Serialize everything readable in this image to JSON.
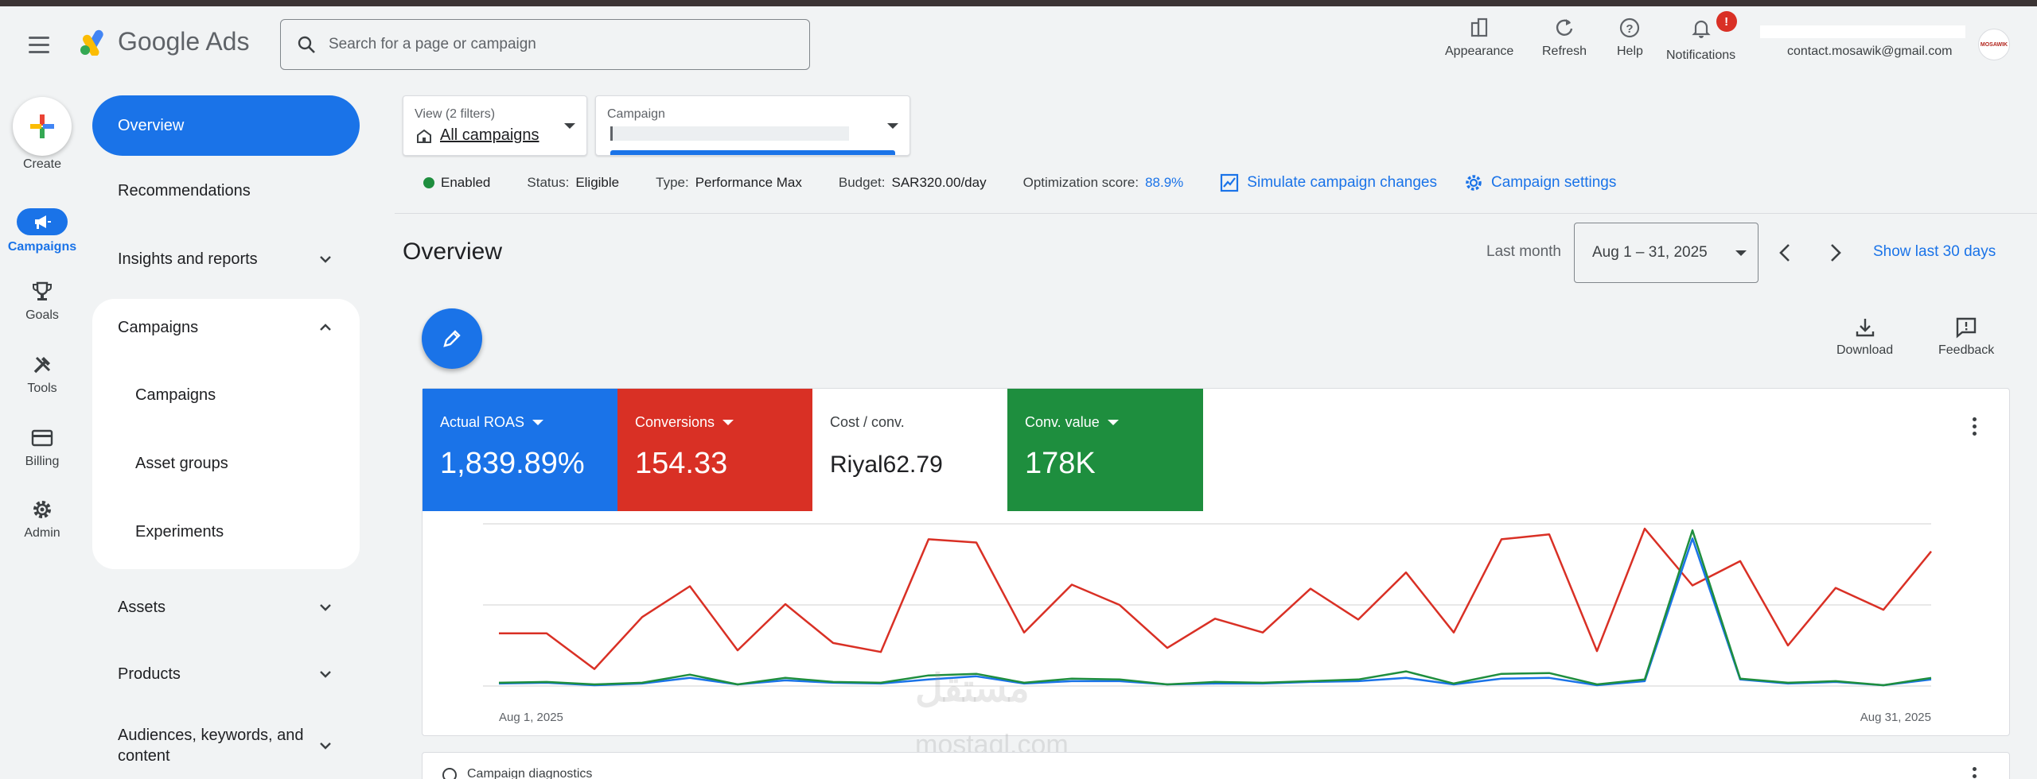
{
  "header": {
    "app_name": "Google Ads",
    "search_placeholder": "Search for a page or campaign",
    "buttons": {
      "appearance": "Appearance",
      "refresh": "Refresh",
      "help": "Help",
      "notifications": "Notifications"
    },
    "notification_badge": "!",
    "account_email": "contact.mosawik@gmail.com",
    "avatar_text": "MOSAWIK"
  },
  "rail": {
    "create": "Create",
    "campaigns": "Campaigns",
    "goals": "Goals",
    "tools": "Tools",
    "billing": "Billing",
    "admin": "Admin"
  },
  "sidenav": {
    "overview": "Overview",
    "recommendations": "Recommendations",
    "insights": "Insights and reports",
    "campaigns_group": "Campaigns",
    "campaigns_sub": "Campaigns",
    "asset_groups": "Asset groups",
    "experiments": "Experiments",
    "assets": "Assets",
    "products": "Products",
    "audiences_line1": "Audiences, keywords, and",
    "audiences_line2": "content"
  },
  "filters": {
    "view_label": "View (2 filters)",
    "view_value": "All campaigns",
    "campaign_label": "Campaign"
  },
  "status": {
    "enabled": "Enabled",
    "status_label": "Status:",
    "status_value": "Eligible",
    "type_label": "Type:",
    "type_value": "Performance Max",
    "budget_label": "Budget:",
    "budget_value": "SAR320.00/day",
    "opt_label": "Optimization score:",
    "opt_value": "88.9%",
    "simulate": "Simulate campaign changes",
    "settings": "Campaign settings"
  },
  "overview": {
    "title": "Overview",
    "date_preset": "Last month",
    "date_range": "Aug 1 – 31, 2025",
    "show_last": "Show last 30 days",
    "download": "Download",
    "feedback": "Feedback"
  },
  "metrics": [
    {
      "label": "Actual ROAS",
      "value": "1,839.89%",
      "color": "#1a73e8"
    },
    {
      "label": "Conversions",
      "value": "154.33",
      "color": "#d93025"
    },
    {
      "label": "Cost / conv.",
      "value": "Riyal62.79",
      "color": "#ffffff"
    },
    {
      "label": "Conv. value",
      "value": "178K",
      "color": "#1e8e3e"
    }
  ],
  "chart_data": {
    "type": "line",
    "x_start_label": "Aug 1, 2025",
    "x_end_label": "Aug 31, 2025",
    "x": [
      1,
      2,
      3,
      4,
      5,
      6,
      7,
      8,
      9,
      10,
      11,
      12,
      13,
      14,
      15,
      16,
      17,
      18,
      19,
      20,
      21,
      22,
      23,
      24,
      25,
      26,
      27,
      28,
      29,
      30,
      31
    ],
    "series": [
      {
        "name": "Conversions",
        "color": "#d93025",
        "values": [
          6.5,
          6.5,
          2.1,
          8.5,
          12.3,
          4.4,
          10.1,
          5.3,
          4.2,
          18.1,
          17.7,
          6.6,
          12.5,
          10.0,
          4.7,
          8.3,
          6.6,
          12.0,
          8.2,
          14.0,
          6.6,
          18.1,
          18.7,
          4.3,
          19.4,
          12.4,
          15.4,
          5.0,
          12.1,
          9.4,
          16.6
        ]
      },
      {
        "name": "Actual ROAS",
        "color": "#1a73e8",
        "values": [
          0.3,
          0.4,
          0.1,
          0.3,
          1.0,
          0.2,
          0.7,
          0.4,
          0.3,
          0.8,
          1.2,
          0.3,
          0.6,
          0.6,
          0.2,
          0.3,
          0.3,
          0.5,
          0.6,
          1.0,
          0.2,
          0.9,
          1.0,
          0.1,
          0.6,
          18.2,
          0.8,
          0.3,
          0.5,
          0.1,
          0.8
        ]
      },
      {
        "name": "Conv. value",
        "color": "#1e8e3e",
        "values": [
          0.4,
          0.5,
          0.2,
          0.4,
          1.4,
          0.2,
          1.0,
          0.5,
          0.4,
          1.3,
          1.5,
          0.4,
          0.9,
          0.8,
          0.2,
          0.5,
          0.4,
          0.6,
          0.8,
          1.8,
          0.3,
          1.5,
          1.6,
          0.2,
          0.8,
          19.2,
          0.9,
          0.4,
          0.6,
          0.1,
          1.0
        ]
      }
    ],
    "ylim": [
      0,
      20
    ],
    "grid": true
  },
  "card2_title": "Campaign diagnostics",
  "watermark": {
    "logo": "مستقل",
    "text": "mostaql.com"
  }
}
